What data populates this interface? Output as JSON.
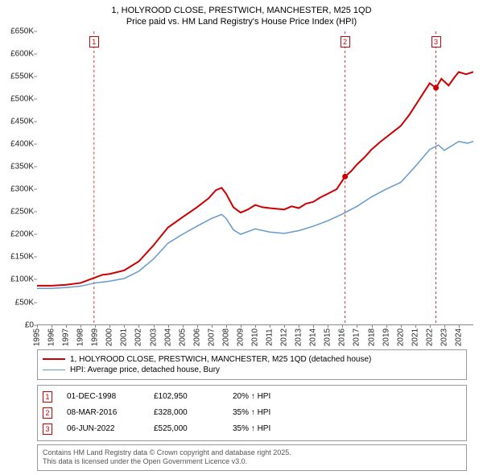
{
  "title": {
    "line1": "1, HOLYROOD CLOSE, PRESTWICH, MANCHESTER, M25 1QD",
    "line2": "Price paid vs. HM Land Registry's House Price Index (HPI)"
  },
  "chart": {
    "type": "line",
    "background_color": "#ffffff",
    "grid_color": "#e0e0e0",
    "axis_color": "#888888",
    "xlim": [
      1995,
      2025
    ],
    "ylim": [
      0,
      650000
    ],
    "ytick_step": 50000,
    "y_tick_labels": [
      "£0",
      "£50K",
      "£100K",
      "£150K",
      "£200K",
      "£250K",
      "£300K",
      "£350K",
      "£400K",
      "£450K",
      "£500K",
      "£550K",
      "£600K",
      "£650K"
    ],
    "x_ticks": [
      1995,
      1996,
      1997,
      1998,
      1999,
      2000,
      2001,
      2002,
      2003,
      2004,
      2005,
      2006,
      2007,
      2008,
      2009,
      2010,
      2011,
      2012,
      2013,
      2014,
      2015,
      2016,
      2017,
      2018,
      2019,
      2020,
      2021,
      2022,
      2023,
      2024
    ],
    "series": [
      {
        "name": "property_price",
        "label": "1, HOLYROOD CLOSE, PRESTWICH, MANCHESTER, M25 1QD (detached house)",
        "color": "#cc0000",
        "line_width": 2,
        "points": [
          [
            1995,
            86000
          ],
          [
            1996,
            86000
          ],
          [
            1997,
            88000
          ],
          [
            1998,
            92000
          ],
          [
            1998.9,
            102950
          ],
          [
            1999.5,
            110000
          ],
          [
            2000,
            112000
          ],
          [
            2001,
            120000
          ],
          [
            2002,
            140000
          ],
          [
            2003,
            175000
          ],
          [
            2004,
            215000
          ],
          [
            2005,
            238000
          ],
          [
            2006,
            260000
          ],
          [
            2006.8,
            280000
          ],
          [
            2007.3,
            298000
          ],
          [
            2007.7,
            303000
          ],
          [
            2008,
            290000
          ],
          [
            2008.5,
            260000
          ],
          [
            2009,
            248000
          ],
          [
            2009.5,
            255000
          ],
          [
            2010,
            265000
          ],
          [
            2010.5,
            260000
          ],
          [
            2011,
            258000
          ],
          [
            2012,
            255000
          ],
          [
            2012.5,
            262000
          ],
          [
            2013,
            258000
          ],
          [
            2013.5,
            268000
          ],
          [
            2014,
            272000
          ],
          [
            2014.5,
            282000
          ],
          [
            2015,
            290000
          ],
          [
            2015.6,
            300000
          ],
          [
            2016.18,
            328000
          ],
          [
            2016.6,
            340000
          ],
          [
            2017,
            355000
          ],
          [
            2017.5,
            370000
          ],
          [
            2018,
            388000
          ],
          [
            2018.6,
            405000
          ],
          [
            2019,
            415000
          ],
          [
            2019.6,
            430000
          ],
          [
            2020,
            440000
          ],
          [
            2020.6,
            465000
          ],
          [
            2021,
            485000
          ],
          [
            2021.6,
            515000
          ],
          [
            2022,
            535000
          ],
          [
            2022.43,
            525000
          ],
          [
            2022.8,
            545000
          ],
          [
            2023.3,
            530000
          ],
          [
            2023.7,
            548000
          ],
          [
            2024,
            560000
          ],
          [
            2024.5,
            555000
          ],
          [
            2025,
            560000
          ]
        ]
      },
      {
        "name": "hpi_bury",
        "label": "HPI: Average price, detached house, Bury",
        "color": "#6699cc",
        "line_width": 1.5,
        "points": [
          [
            1995,
            80000
          ],
          [
            1996,
            80000
          ],
          [
            1997,
            82000
          ],
          [
            1998,
            85000
          ],
          [
            1999,
            92000
          ],
          [
            2000,
            96000
          ],
          [
            2001,
            102000
          ],
          [
            2002,
            118000
          ],
          [
            2003,
            145000
          ],
          [
            2004,
            180000
          ],
          [
            2005,
            200000
          ],
          [
            2006,
            218000
          ],
          [
            2007,
            235000
          ],
          [
            2007.7,
            244000
          ],
          [
            2008,
            235000
          ],
          [
            2008.5,
            210000
          ],
          [
            2009,
            200000
          ],
          [
            2010,
            212000
          ],
          [
            2011,
            205000
          ],
          [
            2012,
            202000
          ],
          [
            2013,
            208000
          ],
          [
            2014,
            218000
          ],
          [
            2015,
            230000
          ],
          [
            2016,
            245000
          ],
          [
            2017,
            262000
          ],
          [
            2018,
            283000
          ],
          [
            2019,
            300000
          ],
          [
            2020,
            315000
          ],
          [
            2021,
            350000
          ],
          [
            2022,
            388000
          ],
          [
            2022.6,
            398000
          ],
          [
            2023,
            386000
          ],
          [
            2023.6,
            398000
          ],
          [
            2024,
            406000
          ],
          [
            2024.6,
            402000
          ],
          [
            2025,
            406000
          ]
        ]
      }
    ],
    "event_markers": [
      {
        "id": "1",
        "x": 1998.92,
        "line_color": "#cc0000",
        "line_dash": "3,3"
      },
      {
        "id": "2",
        "x": 2016.18,
        "line_color": "#cc0000",
        "line_dash": "3,3"
      },
      {
        "id": "3",
        "x": 2022.43,
        "line_color": "#cc0000",
        "line_dash": "3,3"
      }
    ],
    "sale_points": [
      {
        "x": 2016.18,
        "y": 328000,
        "color": "#cc0000"
      },
      {
        "x": 2022.43,
        "y": 525000,
        "color": "#cc0000"
      }
    ]
  },
  "legend": {
    "border_color": "#999999",
    "items": [
      {
        "color": "#cc0000",
        "width": 2,
        "label": "1, HOLYROOD CLOSE, PRESTWICH, MANCHESTER, M25 1QD (detached house)"
      },
      {
        "color": "#6699cc",
        "width": 1.5,
        "label": "HPI: Average price, detached house, Bury"
      }
    ]
  },
  "events_table": {
    "rows": [
      {
        "marker": "1",
        "date": "01-DEC-1998",
        "price": "£102,950",
        "pct": "20% ↑ HPI"
      },
      {
        "marker": "2",
        "date": "08-MAR-2016",
        "price": "£328,000",
        "pct": "35% ↑ HPI"
      },
      {
        "marker": "3",
        "date": "06-JUN-2022",
        "price": "£525,000",
        "pct": "35% ↑ HPI"
      }
    ]
  },
  "footer": {
    "line1": "Contains HM Land Registry data © Crown copyright and database right 2025.",
    "line2": "This data is licensed under the Open Government Licence v3.0."
  }
}
